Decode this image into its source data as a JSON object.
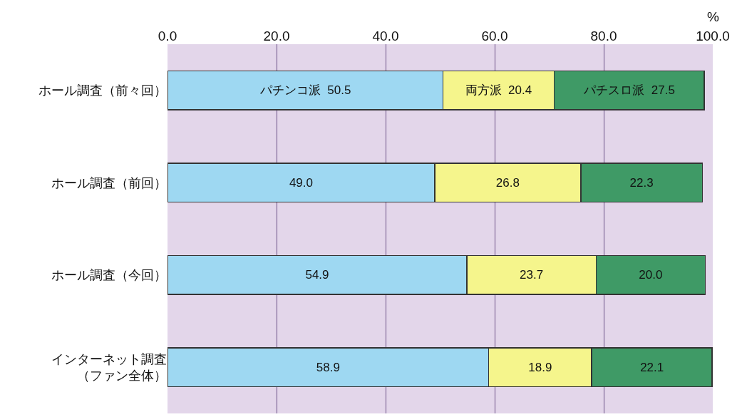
{
  "chart_data": {
    "type": "bar",
    "orientation": "horizontal",
    "stacked": true,
    "xlabel": "%",
    "categories": [
      "ホール調査（前々回）",
      "ホール調査（前回）",
      "ホール調査（今回）",
      "インターネット調査（ファン全体）"
    ],
    "series": [
      {
        "color": "#9ed8f2",
        "values": [
          50.5,
          49.0,
          54.9,
          58.9
        ],
        "value_labels": [
          "パチンコ派  50.5",
          "49.0",
          "54.9",
          "58.9"
        ]
      },
      {
        "color": "#f5f58c",
        "values": [
          20.4,
          26.8,
          23.7,
          18.9
        ],
        "value_labels": [
          "両方派  20.4",
          "26.8",
          "23.7",
          "18.9"
        ]
      },
      {
        "color": "#3f9a66",
        "values": [
          27.5,
          22.3,
          20.0,
          22.1
        ],
        "value_labels": [
          "パチスロ派  27.5",
          "22.3",
          "20.0",
          "22.1"
        ]
      }
    ],
    "xlim": [
      0,
      100
    ],
    "xticks": [
      {
        "value": 0,
        "label": "0.0"
      },
      {
        "value": 20,
        "label": "20.0"
      },
      {
        "value": 40,
        "label": "40.0"
      },
      {
        "value": 60,
        "label": "60.0"
      },
      {
        "value": 80,
        "label": "80.0"
      },
      {
        "value": 100,
        "label": "100.0"
      }
    ],
    "grid": "x"
  }
}
